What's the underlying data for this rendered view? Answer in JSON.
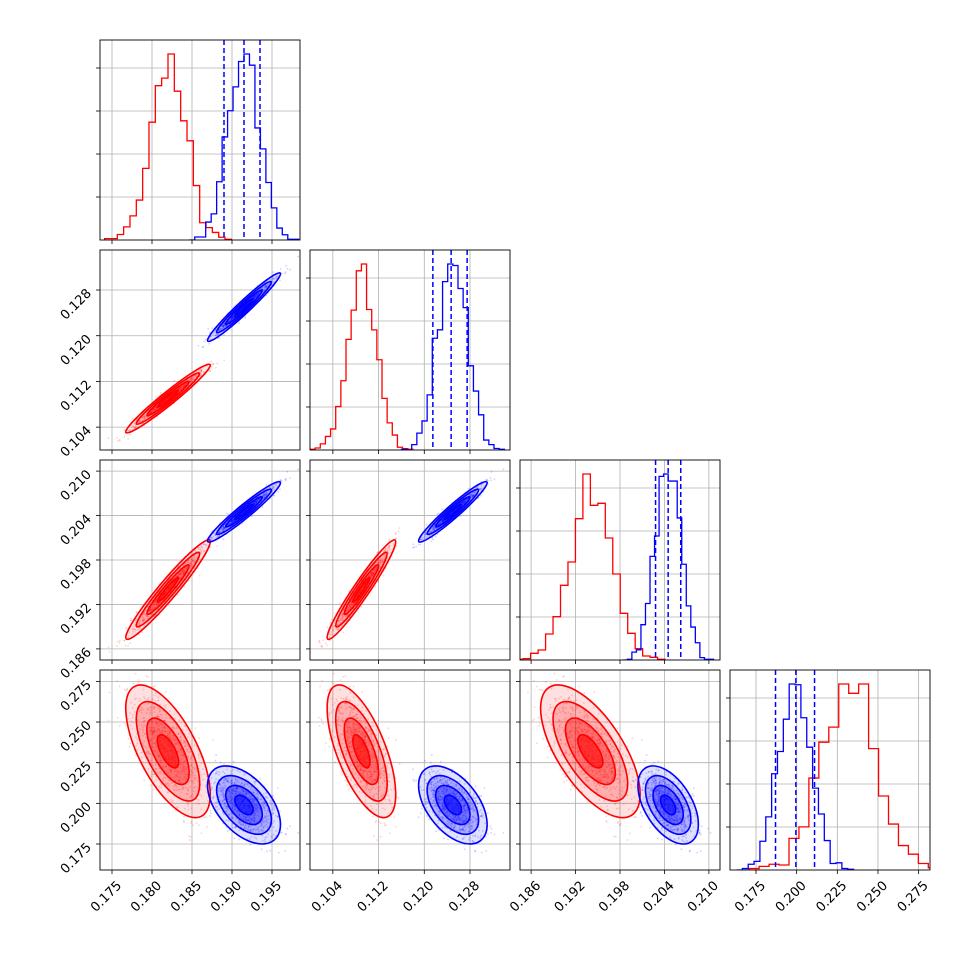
{
  "colors": {
    "red": "#ff0000",
    "blue": "#0000ff",
    "grid": "#b0b0b0",
    "axis": "#000000"
  },
  "chart_data": {
    "type": "corner",
    "title": "",
    "series": [
      {
        "name": "",
        "color": "#ff0000",
        "mean": [
          0.182,
          0.109,
          0.194,
          0.232
        ],
        "sd": [
          0.0022,
          0.0025,
          0.0028,
          0.017
        ],
        "corr": [
          [
            1,
            0.97,
            0.96,
            -0.65
          ],
          [
            0.97,
            1,
            0.96,
            -0.65
          ],
          [
            0.96,
            0.96,
            1,
            -0.65
          ],
          [
            -0.65,
            -0.65,
            -0.65,
            1
          ]
        ]
      },
      {
        "name": "",
        "color": "#0000ff",
        "mean": [
          0.1915,
          0.125,
          0.2045,
          0.199
        ],
        "sd": [
          0.0019,
          0.0025,
          0.0017,
          0.01
        ],
        "corr": [
          [
            1,
            0.97,
            0.96,
            -0.5
          ],
          [
            0.97,
            1,
            0.96,
            -0.5
          ],
          [
            0.96,
            0.96,
            1,
            -0.5
          ],
          [
            -0.5,
            -0.5,
            -0.5,
            1
          ]
        ],
        "quantile_lines": [
          [
            0.189,
            0.1915,
            0.1935
          ],
          [
            0.1215,
            0.1247,
            0.1275
          ],
          [
            0.2028,
            0.2045,
            0.2062
          ],
          [
            0.187,
            0.1995,
            0.211
          ]
        ]
      }
    ],
    "dimensions": [
      {
        "range": [
          0.1735,
          0.1985
        ],
        "ticks": [
          "0.175",
          "0.180",
          "0.185",
          "0.190",
          "0.195"
        ]
      },
      {
        "range": [
          0.1,
          0.135
        ],
        "ticks": [
          "0.104",
          "0.112",
          "0.120",
          "0.128"
        ]
      },
      {
        "range": [
          0.1845,
          0.2115
        ],
        "ticks": [
          "0.186",
          "0.192",
          "0.198",
          "0.204",
          "0.210"
        ]
      },
      {
        "range": [
          0.159,
          0.282
        ],
        "ticks": [
          "0.175",
          "0.200",
          "0.225",
          "0.250",
          "0.275"
        ]
      }
    ],
    "grid": true
  }
}
